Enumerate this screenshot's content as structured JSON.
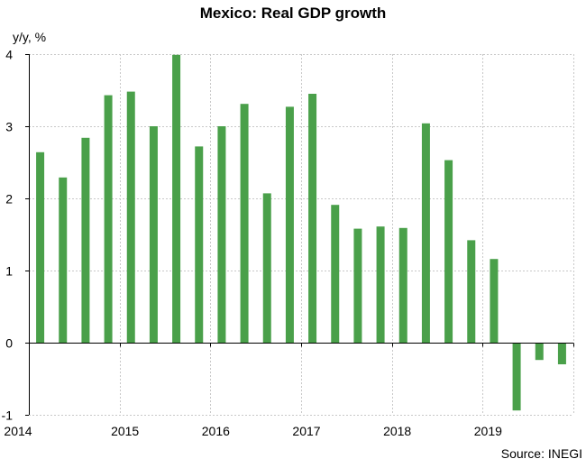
{
  "chart_data": {
    "type": "bar",
    "title": "Mexico: Real GDP growth",
    "ylabel": "y/y, %",
    "xlabel": "",
    "source": "Source: INEGI",
    "ylim": [
      -1,
      4
    ],
    "yticks": [
      -1,
      0,
      1,
      2,
      3,
      4
    ],
    "ytick_labels": [
      "-1",
      "0",
      "1",
      "2",
      "3",
      "4"
    ],
    "xlim": [
      "2014-Q1",
      "2019-Q4"
    ],
    "year_labels": [
      "2014",
      "2015",
      "2016",
      "2017",
      "2018",
      "2019"
    ],
    "bar_color": "#4aa04a",
    "grid": true,
    "legend": "none",
    "categories": [
      "2014-Q1",
      "2014-Q2",
      "2014-Q3",
      "2014-Q4",
      "2015-Q1",
      "2015-Q2",
      "2015-Q3",
      "2015-Q4",
      "2016-Q1",
      "2016-Q2",
      "2016-Q3",
      "2016-Q4",
      "2017-Q1",
      "2017-Q2",
      "2017-Q3",
      "2017-Q4",
      "2018-Q1",
      "2018-Q2",
      "2018-Q3",
      "2018-Q4",
      "2019-Q1",
      "2019-Q2",
      "2019-Q3",
      "2019-Q4"
    ],
    "values": [
      2.64,
      2.29,
      2.84,
      3.43,
      3.48,
      3.0,
      3.99,
      2.72,
      3.0,
      3.31,
      2.07,
      3.27,
      3.45,
      1.91,
      1.58,
      1.61,
      1.59,
      3.04,
      2.53,
      1.42,
      1.16,
      -0.94,
      -0.24,
      -0.3
    ]
  }
}
